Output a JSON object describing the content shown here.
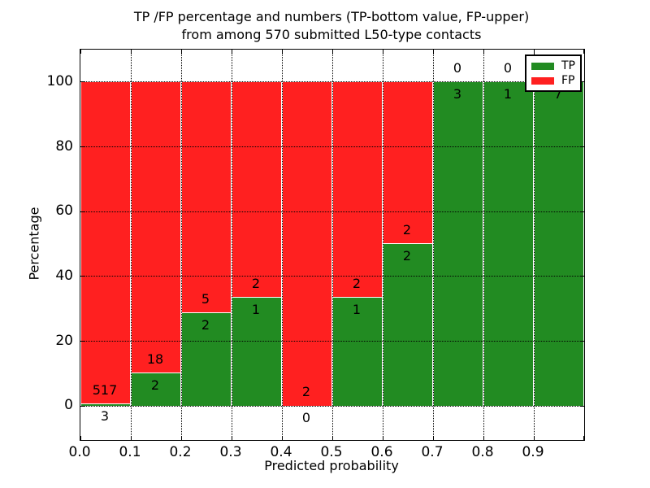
{
  "figure": {
    "title_line1": "TP /FP percentage and numbers (TP-bottom value, FP-upper)",
    "title_line2": "from among 570 submitted L50-type contacts",
    "xlabel": "Predicted probability",
    "ylabel": "Percentage"
  },
  "legend": {
    "position": "upper right",
    "items": [
      {
        "label": "TP",
        "color": "#228b22"
      },
      {
        "label": "FP",
        "color": "#ff2020"
      }
    ]
  },
  "chart_data": {
    "type": "bar",
    "stacked": true,
    "normalized": "percent",
    "title": "TP /FP percentage and numbers (TP-bottom value, FP-upper) from among 570 submitted L50-type contacts",
    "xlabel": "Predicted probability",
    "ylabel": "Percentage",
    "total_contacts": 570,
    "bin_width": 0.1,
    "categories": [
      0.0,
      0.1,
      0.2,
      0.3,
      0.4,
      0.5,
      0.6,
      0.7,
      0.8,
      0.9
    ],
    "series": [
      {
        "name": "TP",
        "color": "#228b22",
        "counts": [
          3,
          2,
          2,
          1,
          0,
          1,
          2,
          3,
          1,
          7
        ]
      },
      {
        "name": "FP",
        "color": "#ff2020",
        "counts": [
          517,
          18,
          5,
          2,
          2,
          2,
          2,
          0,
          0,
          0
        ]
      }
    ],
    "tp_percent": [
      0.58,
      10.0,
      28.57,
      33.33,
      0.0,
      33.33,
      50.0,
      100.0,
      100.0,
      100.0
    ],
    "xticks": [
      "0.0",
      "0.1",
      "0.2",
      "0.3",
      "0.4",
      "0.5",
      "0.6",
      "0.7",
      "0.8",
      "0.9"
    ],
    "yticks": [
      0,
      20,
      40,
      60,
      80,
      100
    ],
    "xlim": [
      0.0,
      1.0
    ],
    "ylim": [
      -10.5,
      110.0
    ],
    "grid": true,
    "grid_style": "dotted",
    "background": "#ffffff"
  }
}
